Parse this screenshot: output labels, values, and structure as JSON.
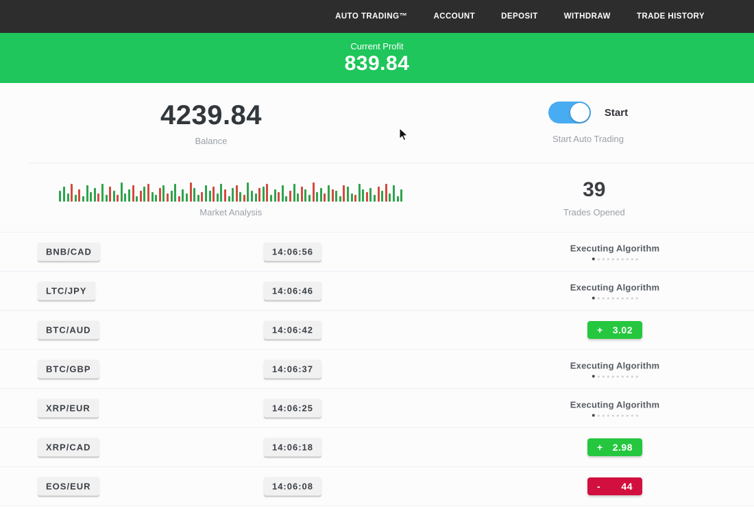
{
  "navbar": {
    "items": [
      {
        "label": "AUTO TRADING™"
      },
      {
        "label": "ACCOUNT"
      },
      {
        "label": "DEPOSIT"
      },
      {
        "label": "WITHDRAW"
      },
      {
        "label": "TRADE HISTORY"
      }
    ]
  },
  "profit_banner": {
    "label": "Current Profit",
    "value": "839.84",
    "bg": "#1ec65b"
  },
  "stats": {
    "balance": {
      "value": "4239.84",
      "label": "Balance"
    },
    "auto_trading": {
      "toggle_label": "Start",
      "label": "Start Auto Trading",
      "toggle_on": true,
      "toggle_color": "#48acf2"
    },
    "market_analysis": {
      "label": "Market Analysis",
      "colors": {
        "g": "#2fa34c",
        "r": "#d24a3e"
      },
      "bars": "g16,g22,g12,r26,g10,r18,g8,g24,g14,g20,r12,g26,g10,r22,g16,r10,g28,g12,g18,r24,g8,r16,g22,r26,g14,g10,r20,g24,r12,g16,g26,r8,g18,g12,r28,g20,g10,r14,g24,g16,r22,g12,g26,r18,g8,g20,r24,g14,r10,g28,g16,g12,r20,g22,r26,g10,g18,r14,g24,g8,r16,g26,g12,r22,g18,g10,r28,g14,g20,r12,g24,r18,g16,g8,r24,g22,g12,r10,g26,g18,r14,g20,g10,r22,g16,r26,g12,g24,g8,g18"
    },
    "trades_opened": {
      "value": "39",
      "label": "Trades Opened"
    }
  },
  "trades": {
    "executing_label": "Executing Algorithm",
    "progress_dots": {
      "count": 10,
      "active_index": 0
    },
    "colors": {
      "profit": "#25c73f",
      "loss": "#d2103f"
    },
    "rows": [
      {
        "pair": "BNB/CAD",
        "time": "14:06:56",
        "status": "executing"
      },
      {
        "pair": "LTC/JPY",
        "time": "14:06:46",
        "status": "executing"
      },
      {
        "pair": "BTC/AUD",
        "time": "14:06:42",
        "status": "result",
        "sign": "+",
        "value": "3.02",
        "kind": "profit"
      },
      {
        "pair": "BTC/GBP",
        "time": "14:06:37",
        "status": "executing"
      },
      {
        "pair": "XRP/EUR",
        "time": "14:06:25",
        "status": "executing"
      },
      {
        "pair": "XRP/CAD",
        "time": "14:06:18",
        "status": "result",
        "sign": "+",
        "value": "2.98",
        "kind": "profit"
      },
      {
        "pair": "EOS/EUR",
        "time": "14:06:08",
        "status": "result",
        "sign": "-",
        "value": "44",
        "kind": "loss"
      }
    ]
  }
}
